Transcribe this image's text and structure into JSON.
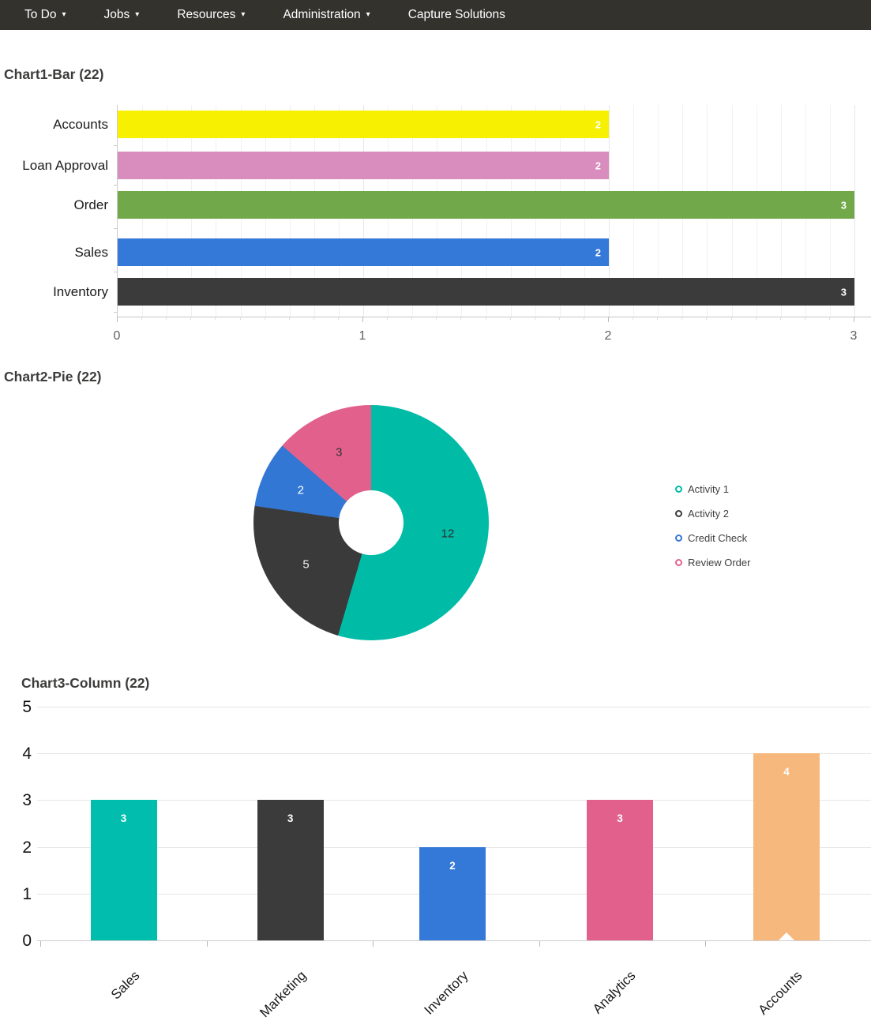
{
  "navbar": {
    "items": [
      {
        "label": "To Do",
        "caret": true
      },
      {
        "label": "Jobs",
        "caret": true
      },
      {
        "label": "Resources",
        "caret": true
      },
      {
        "label": "Administration",
        "caret": true
      },
      {
        "label": "Capture Solutions",
        "caret": false
      }
    ],
    "bg_color": "#33322d",
    "text_color": "#ffffff"
  },
  "chart_data": [
    {
      "type": "bar",
      "orientation": "horizontal",
      "title": "Chart1-Bar (22)",
      "categories": [
        "Accounts",
        "Loan Approval",
        "Order",
        "Sales",
        "Inventory"
      ],
      "values": [
        2,
        2,
        3,
        2,
        3
      ],
      "colors": [
        "#f7f000",
        "#d98cbe",
        "#71a94a",
        "#3478d8",
        "#3b3b3b"
      ],
      "value_label_color": "#ffffff",
      "xlim": [
        0,
        3
      ],
      "xticks": [
        0,
        1,
        2,
        3
      ],
      "grid": "minor-vertical"
    },
    {
      "type": "pie",
      "title": "Chart2-Pie (22)",
      "donut": true,
      "labels": [
        "Activity 1",
        "Activity 2",
        "Credit Check",
        "Review Order"
      ],
      "values": [
        12,
        5,
        2,
        3
      ],
      "colors": [
        "#00bca7",
        "#3a3a3a",
        "#3377d4",
        "#e2618c"
      ],
      "slice_label_colors": [
        "#2f2f2f",
        "#ececec",
        "#ffffff",
        "#333333"
      ],
      "legend_position": "right",
      "start_angle_deg": 0,
      "direction": "clockwise"
    },
    {
      "type": "bar",
      "orientation": "vertical",
      "title": "Chart3-Column (22)",
      "categories": [
        "Sales",
        "Marketing",
        "Inventory",
        "Analytics",
        "Accounts"
      ],
      "values": [
        3,
        3,
        2,
        3,
        4
      ],
      "colors": [
        "#00bdae",
        "#3b3b3b",
        "#3478d8",
        "#e2618c",
        "#f6b87c"
      ],
      "value_label_color": "#ffffff",
      "ylim": [
        0,
        5
      ],
      "yticks": [
        0,
        1,
        2,
        3,
        4,
        5
      ],
      "grid": "horizontal",
      "marker_index": 4
    }
  ]
}
